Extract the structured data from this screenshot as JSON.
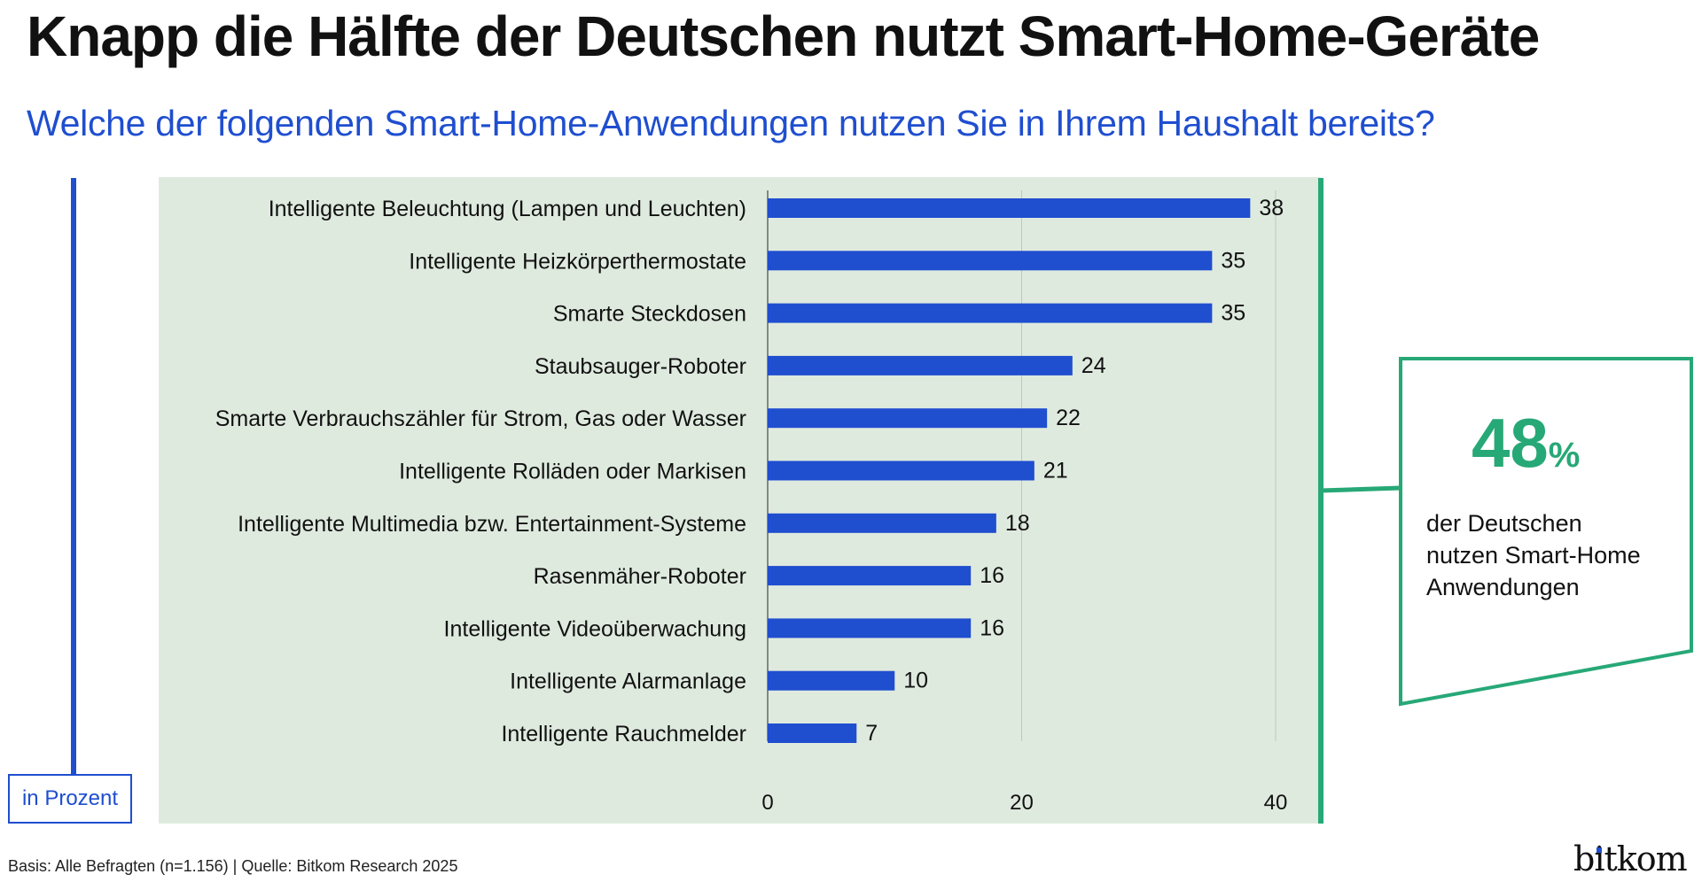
{
  "header": {
    "title": "Knapp die Hälfte der Deutschen nutzt Smart-Home-Geräte",
    "subtitle": "Welche der folgenden Smart-Home-Anwendungen nutzen Sie in Ihrem Haushalt bereits?"
  },
  "unit_label": "in Prozent",
  "callout": {
    "value": "48",
    "unit": "%",
    "lines": [
      "der Deutschen",
      "nutzen Smart-Home",
      "Anwendungen"
    ]
  },
  "footnote": "Basis: Alle Befragten (n=1.156) | Quelle: Bitkom Research 2025",
  "logo": "bitkom",
  "colors": {
    "bar": "#1f4ecf",
    "accent_green": "#27a877",
    "panel_bg": "#dfeadf",
    "title": "#111111",
    "subtitle": "#1f4ecf"
  },
  "chart_data": {
    "type": "bar",
    "orientation": "horizontal",
    "title": "Knapp die Hälfte der Deutschen nutzt Smart-Home-Geräte",
    "subtitle": "Welche der folgenden Smart-Home-Anwendungen nutzen Sie in Ihrem Haushalt bereits?",
    "xlabel": "in Prozent",
    "ylabel": "",
    "xlim": [
      0,
      40
    ],
    "xticks": [
      0,
      20,
      40
    ],
    "grid": true,
    "categories": [
      "Intelligente Beleuchtung (Lampen und Leuchten)",
      "Intelligente Heizkörperthermostate",
      "Smarte Steckdosen",
      "Staubsauger-Roboter",
      "Smarte Verbrauchszähler für Strom, Gas oder Wasser",
      "Intelligente Rolläden oder Markisen",
      "Intelligente Multimedia bzw. Entertainment-Systeme",
      "Rasenmäher-Roboter",
      "Intelligente Videoüberwachung",
      "Intelligente Alarmanlage",
      "Intelligente Rauchmelder"
    ],
    "values": [
      38,
      35,
      35,
      24,
      22,
      21,
      18,
      16,
      16,
      10,
      7
    ]
  }
}
